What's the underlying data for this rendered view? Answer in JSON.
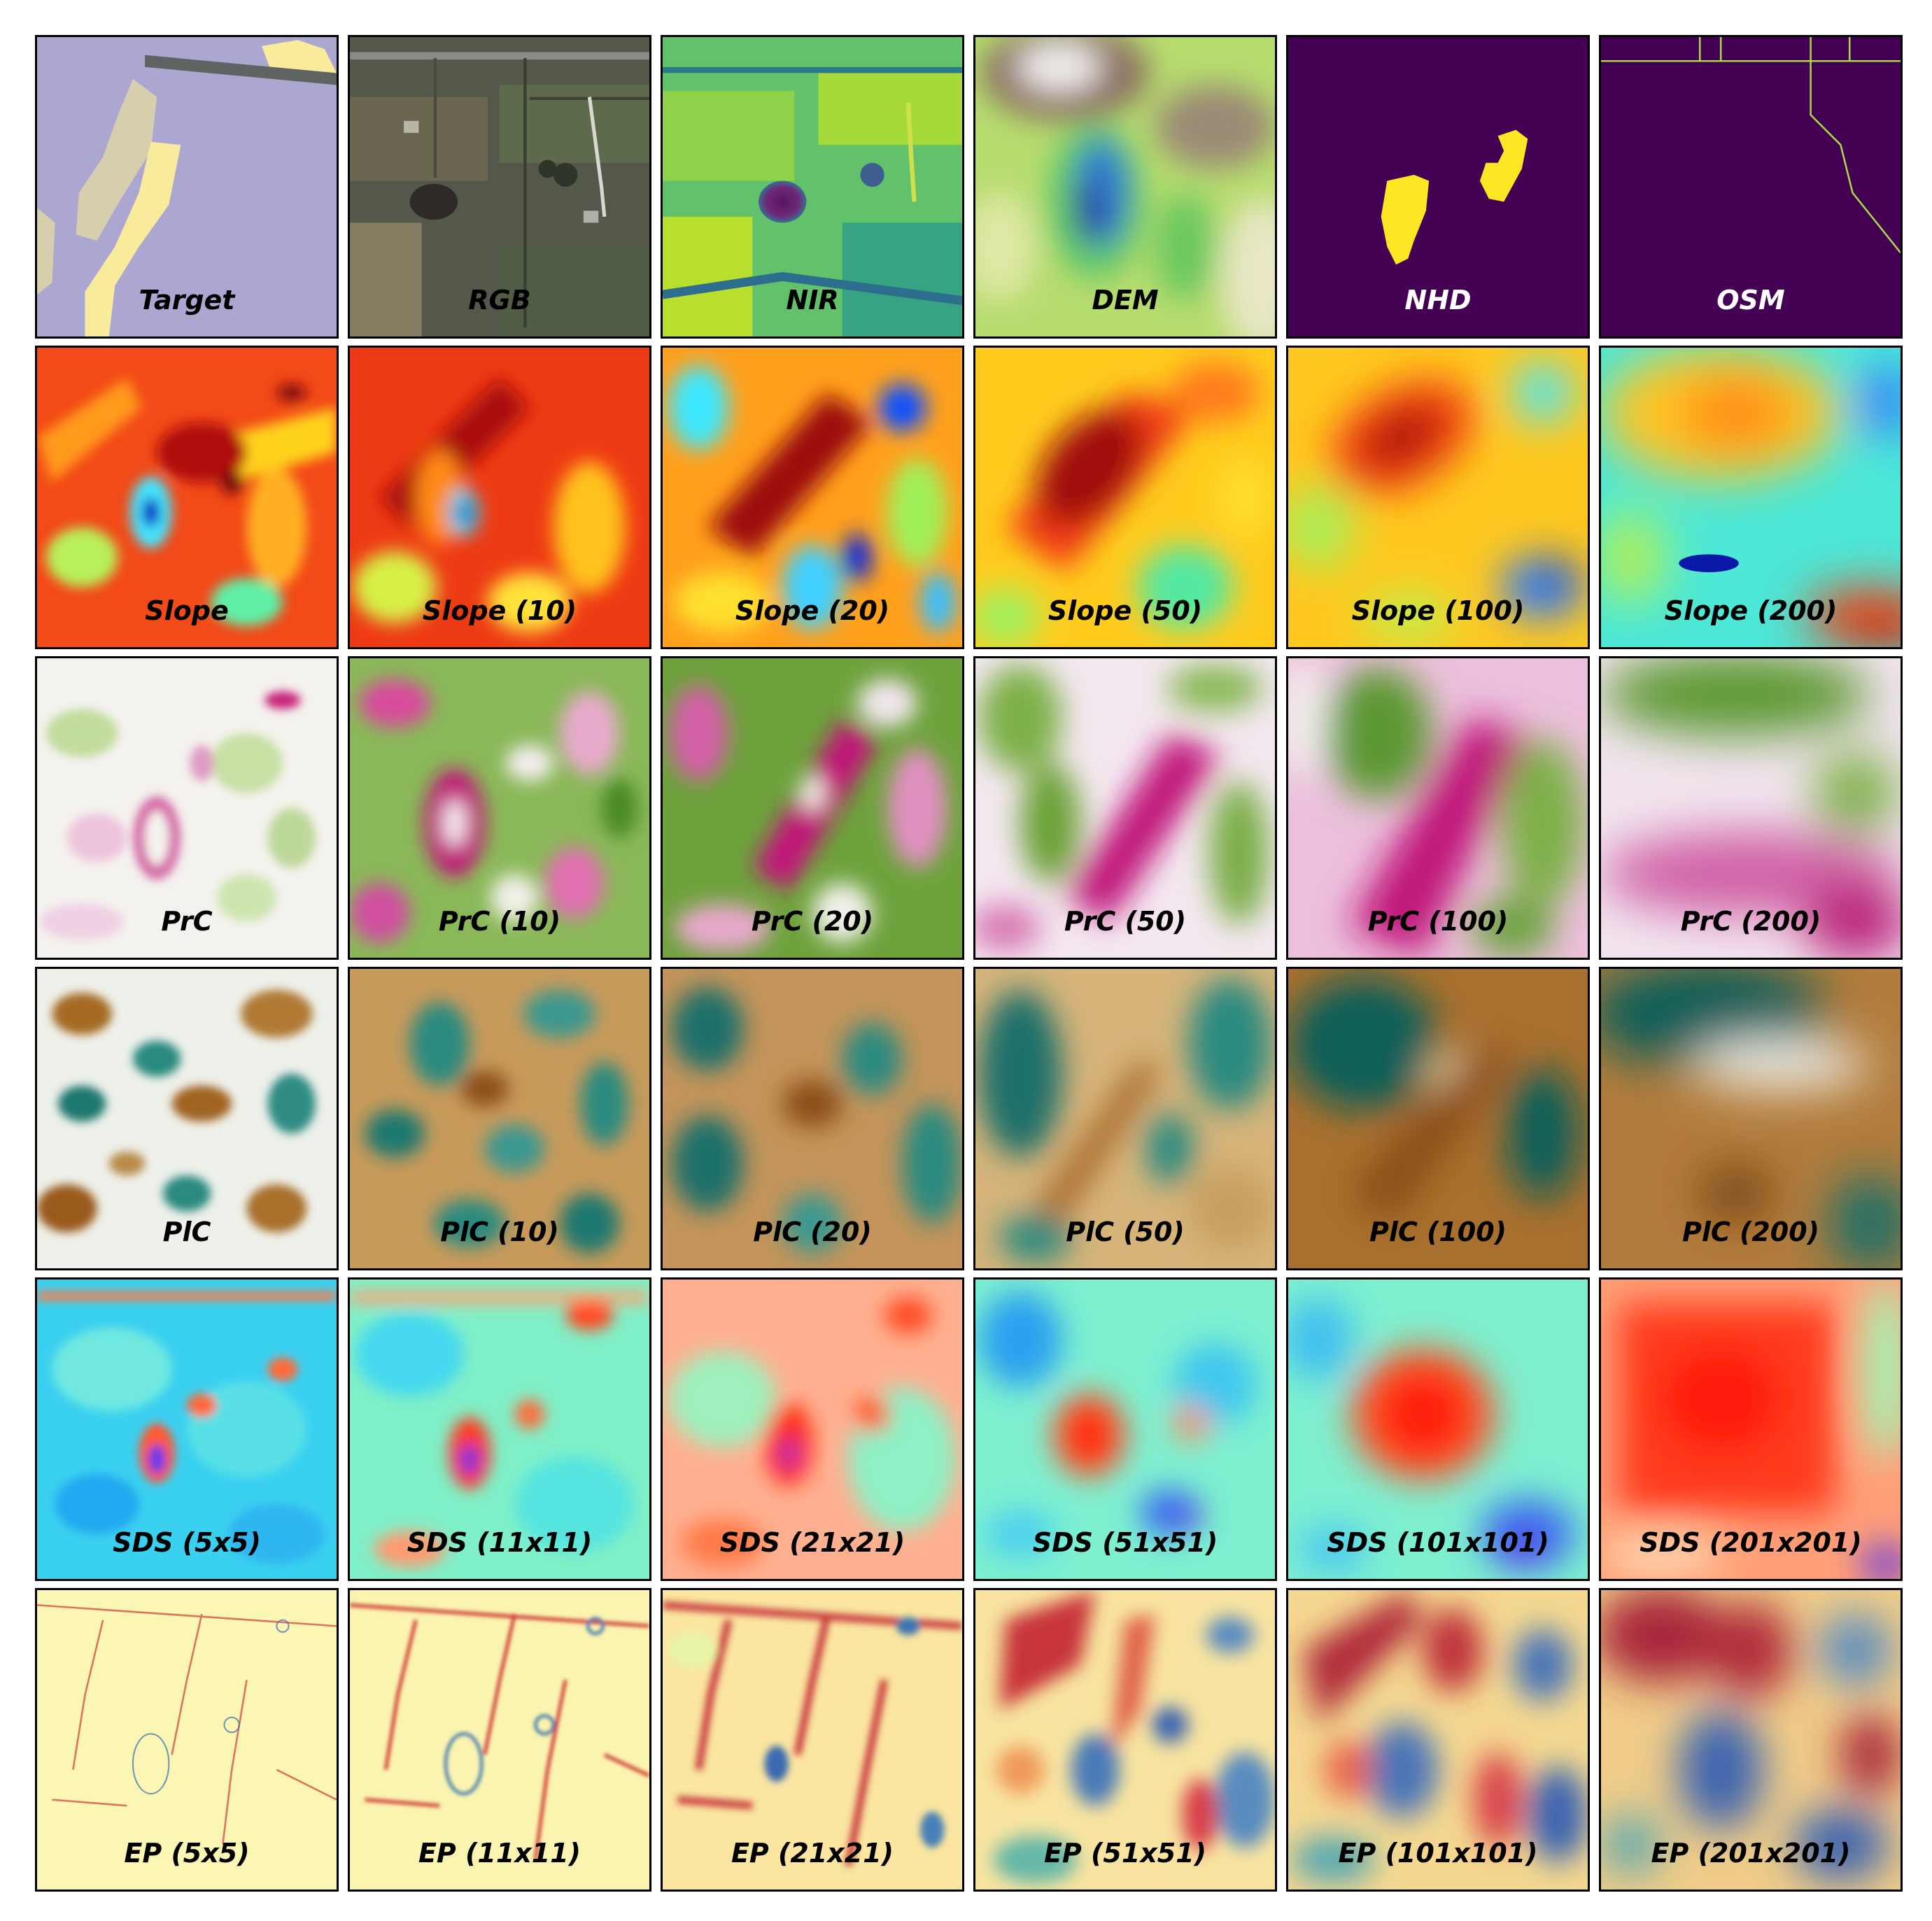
{
  "rows": [
    {
      "panels": [
        {
          "label": "Target",
          "colormap": "land-cover-classes",
          "text_color": "#000000"
        },
        {
          "label": "RGB",
          "colormap": "aerial-true-color",
          "text_color": "#000000"
        },
        {
          "label": "NIR",
          "colormap": "viridis",
          "text_color": "#000000"
        },
        {
          "label": "DEM",
          "colormap": "terrain",
          "text_color": "#000000"
        },
        {
          "label": "NHD",
          "colormap": "viridis-binary",
          "text_color": "#ffffff"
        },
        {
          "label": "OSM",
          "colormap": "viridis-binary",
          "text_color": "#ffffff"
        }
      ]
    },
    {
      "panels": [
        {
          "label": "Slope",
          "colormap": "jet-r"
        },
        {
          "label": "Slope (10)",
          "colormap": "jet-r"
        },
        {
          "label": "Slope (20)",
          "colormap": "jet-r"
        },
        {
          "label": "Slope (50)",
          "colormap": "jet-r"
        },
        {
          "label": "Slope (100)",
          "colormap": "jet-r"
        },
        {
          "label": "Slope (200)",
          "colormap": "jet-r"
        }
      ]
    },
    {
      "panels": [
        {
          "label": "PrC",
          "colormap": "PiYG"
        },
        {
          "label": "PrC (10)",
          "colormap": "PiYG"
        },
        {
          "label": "PrC (20)",
          "colormap": "PiYG"
        },
        {
          "label": "PrC (50)",
          "colormap": "PiYG"
        },
        {
          "label": "PrC (100)",
          "colormap": "PiYG"
        },
        {
          "label": "PrC (200)",
          "colormap": "PiYG"
        }
      ]
    },
    {
      "panels": [
        {
          "label": "PlC",
          "colormap": "BrBG"
        },
        {
          "label": "PlC (10)",
          "colormap": "BrBG"
        },
        {
          "label": "PlC (20)",
          "colormap": "BrBG"
        },
        {
          "label": "PlC (50)",
          "colormap": "BrBG"
        },
        {
          "label": "PlC (100)",
          "colormap": "BrBG"
        },
        {
          "label": "PlC (200)",
          "colormap": "BrBG"
        }
      ]
    },
    {
      "panels": [
        {
          "label": "SDS (5x5)",
          "colormap": "rainbow"
        },
        {
          "label": "SDS (11x11)",
          "colormap": "rainbow"
        },
        {
          "label": "SDS (21x21)",
          "colormap": "rainbow"
        },
        {
          "label": "SDS (51x51)",
          "colormap": "rainbow"
        },
        {
          "label": "SDS (101x101)",
          "colormap": "rainbow"
        },
        {
          "label": "SDS (201x201)",
          "colormap": "rainbow"
        }
      ]
    },
    {
      "panels": [
        {
          "label": "EP (5x5)",
          "colormap": "Spectral"
        },
        {
          "label": "EP (11x11)",
          "colormap": "Spectral"
        },
        {
          "label": "EP (21x21)",
          "colormap": "Spectral"
        },
        {
          "label": "EP (51x51)",
          "colormap": "Spectral"
        },
        {
          "label": "EP (101x101)",
          "colormap": "Spectral"
        },
        {
          "label": "EP (201x201)",
          "colormap": "Spectral"
        }
      ]
    }
  ]
}
